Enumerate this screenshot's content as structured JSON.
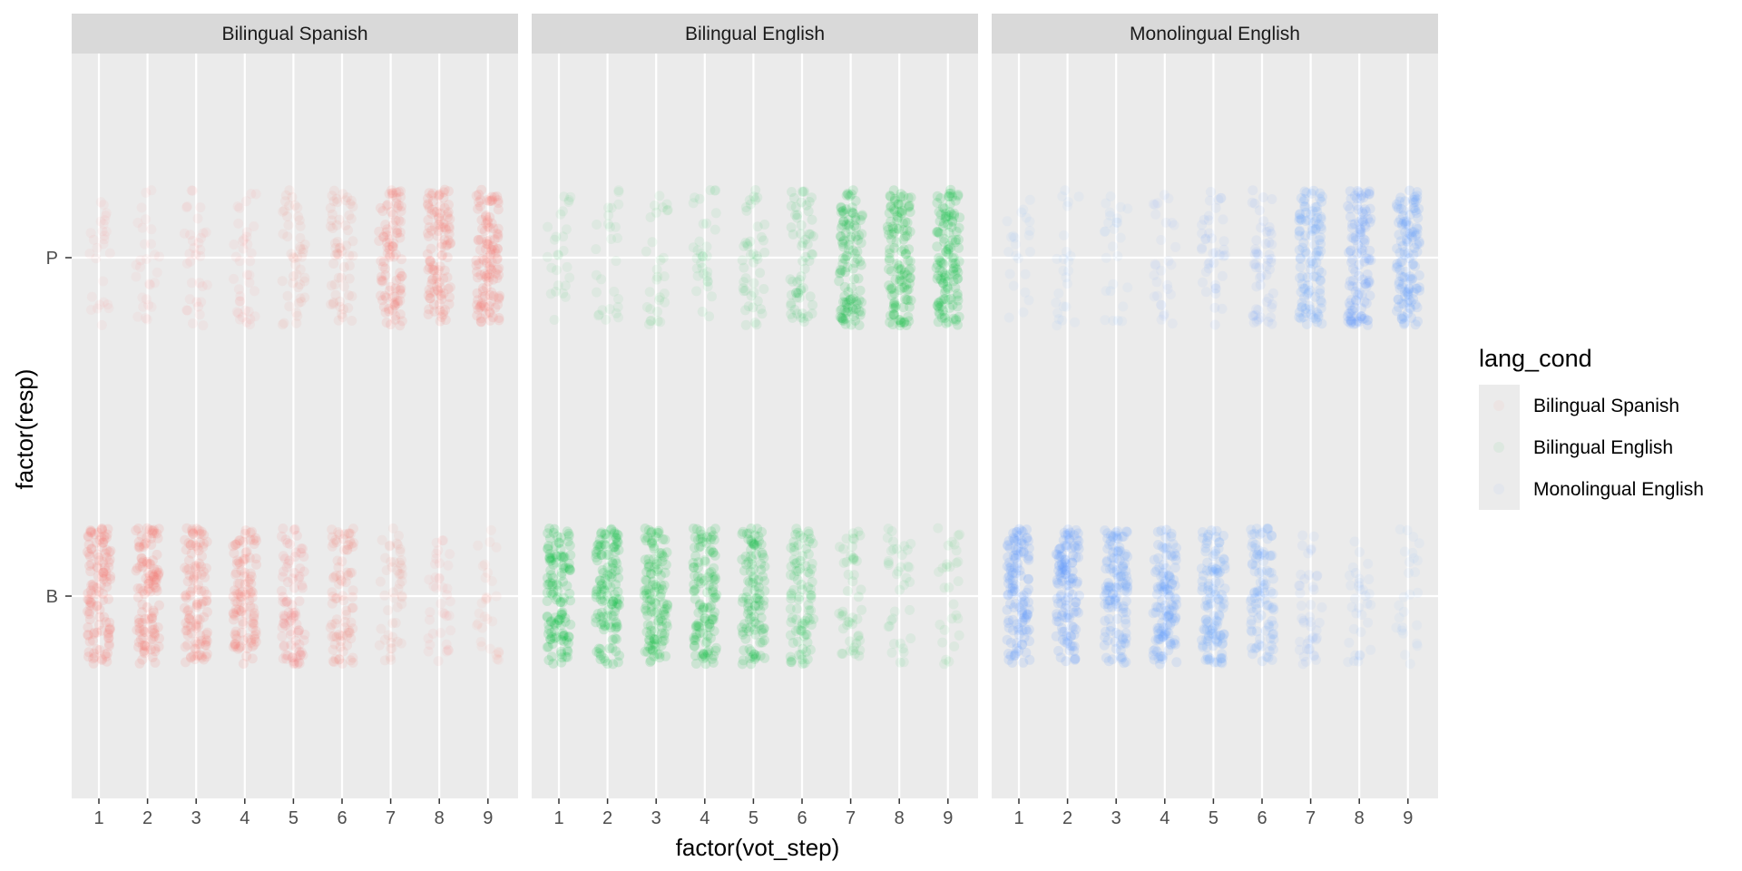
{
  "chart_data": {
    "type": "scatter",
    "subtype": "jittered strip plot, faceted",
    "xlabel": "factor(vot_step)",
    "ylabel": "factor(resp)",
    "x_categories": [
      "1",
      "2",
      "3",
      "4",
      "5",
      "6",
      "7",
      "8",
      "9"
    ],
    "y_categories": [
      "B",
      "P"
    ],
    "grid": true,
    "legend": {
      "title": "lang_cond",
      "position": "right",
      "entries": [
        "Bilingual Spanish",
        "Bilingual English",
        "Monolingual English"
      ]
    },
    "facets": [
      {
        "label": "Bilingual Spanish",
        "color": "#F8766D",
        "series": [
          {
            "resp": "P",
            "relative_density": [
              0.06,
              0.07,
              0.12,
              0.15,
              0.25,
              0.35,
              0.72,
              0.82,
              0.92
            ]
          },
          {
            "resp": "B",
            "relative_density": [
              0.92,
              0.9,
              0.86,
              0.82,
              0.62,
              0.58,
              0.26,
              0.16,
              0.08
            ]
          }
        ]
      },
      {
        "label": "Bilingual English",
        "color": "#00BA38",
        "series": [
          {
            "resp": "P",
            "relative_density": [
              0.05,
              0.06,
              0.08,
              0.12,
              0.22,
              0.38,
              0.86,
              0.93,
              0.96
            ]
          },
          {
            "resp": "B",
            "relative_density": [
              0.96,
              0.95,
              0.93,
              0.9,
              0.82,
              0.62,
              0.25,
              0.15,
              0.08
            ]
          }
        ]
      },
      {
        "label": "Monolingual English",
        "color": "#619CFF",
        "series": [
          {
            "resp": "P",
            "relative_density": [
              0.03,
              0.04,
              0.05,
              0.08,
              0.18,
              0.3,
              0.82,
              0.9,
              0.94
            ]
          },
          {
            "resp": "B",
            "relative_density": [
              0.96,
              0.95,
              0.94,
              0.92,
              0.86,
              0.7,
              0.22,
              0.12,
              0.05
            ]
          }
        ]
      }
    ]
  }
}
